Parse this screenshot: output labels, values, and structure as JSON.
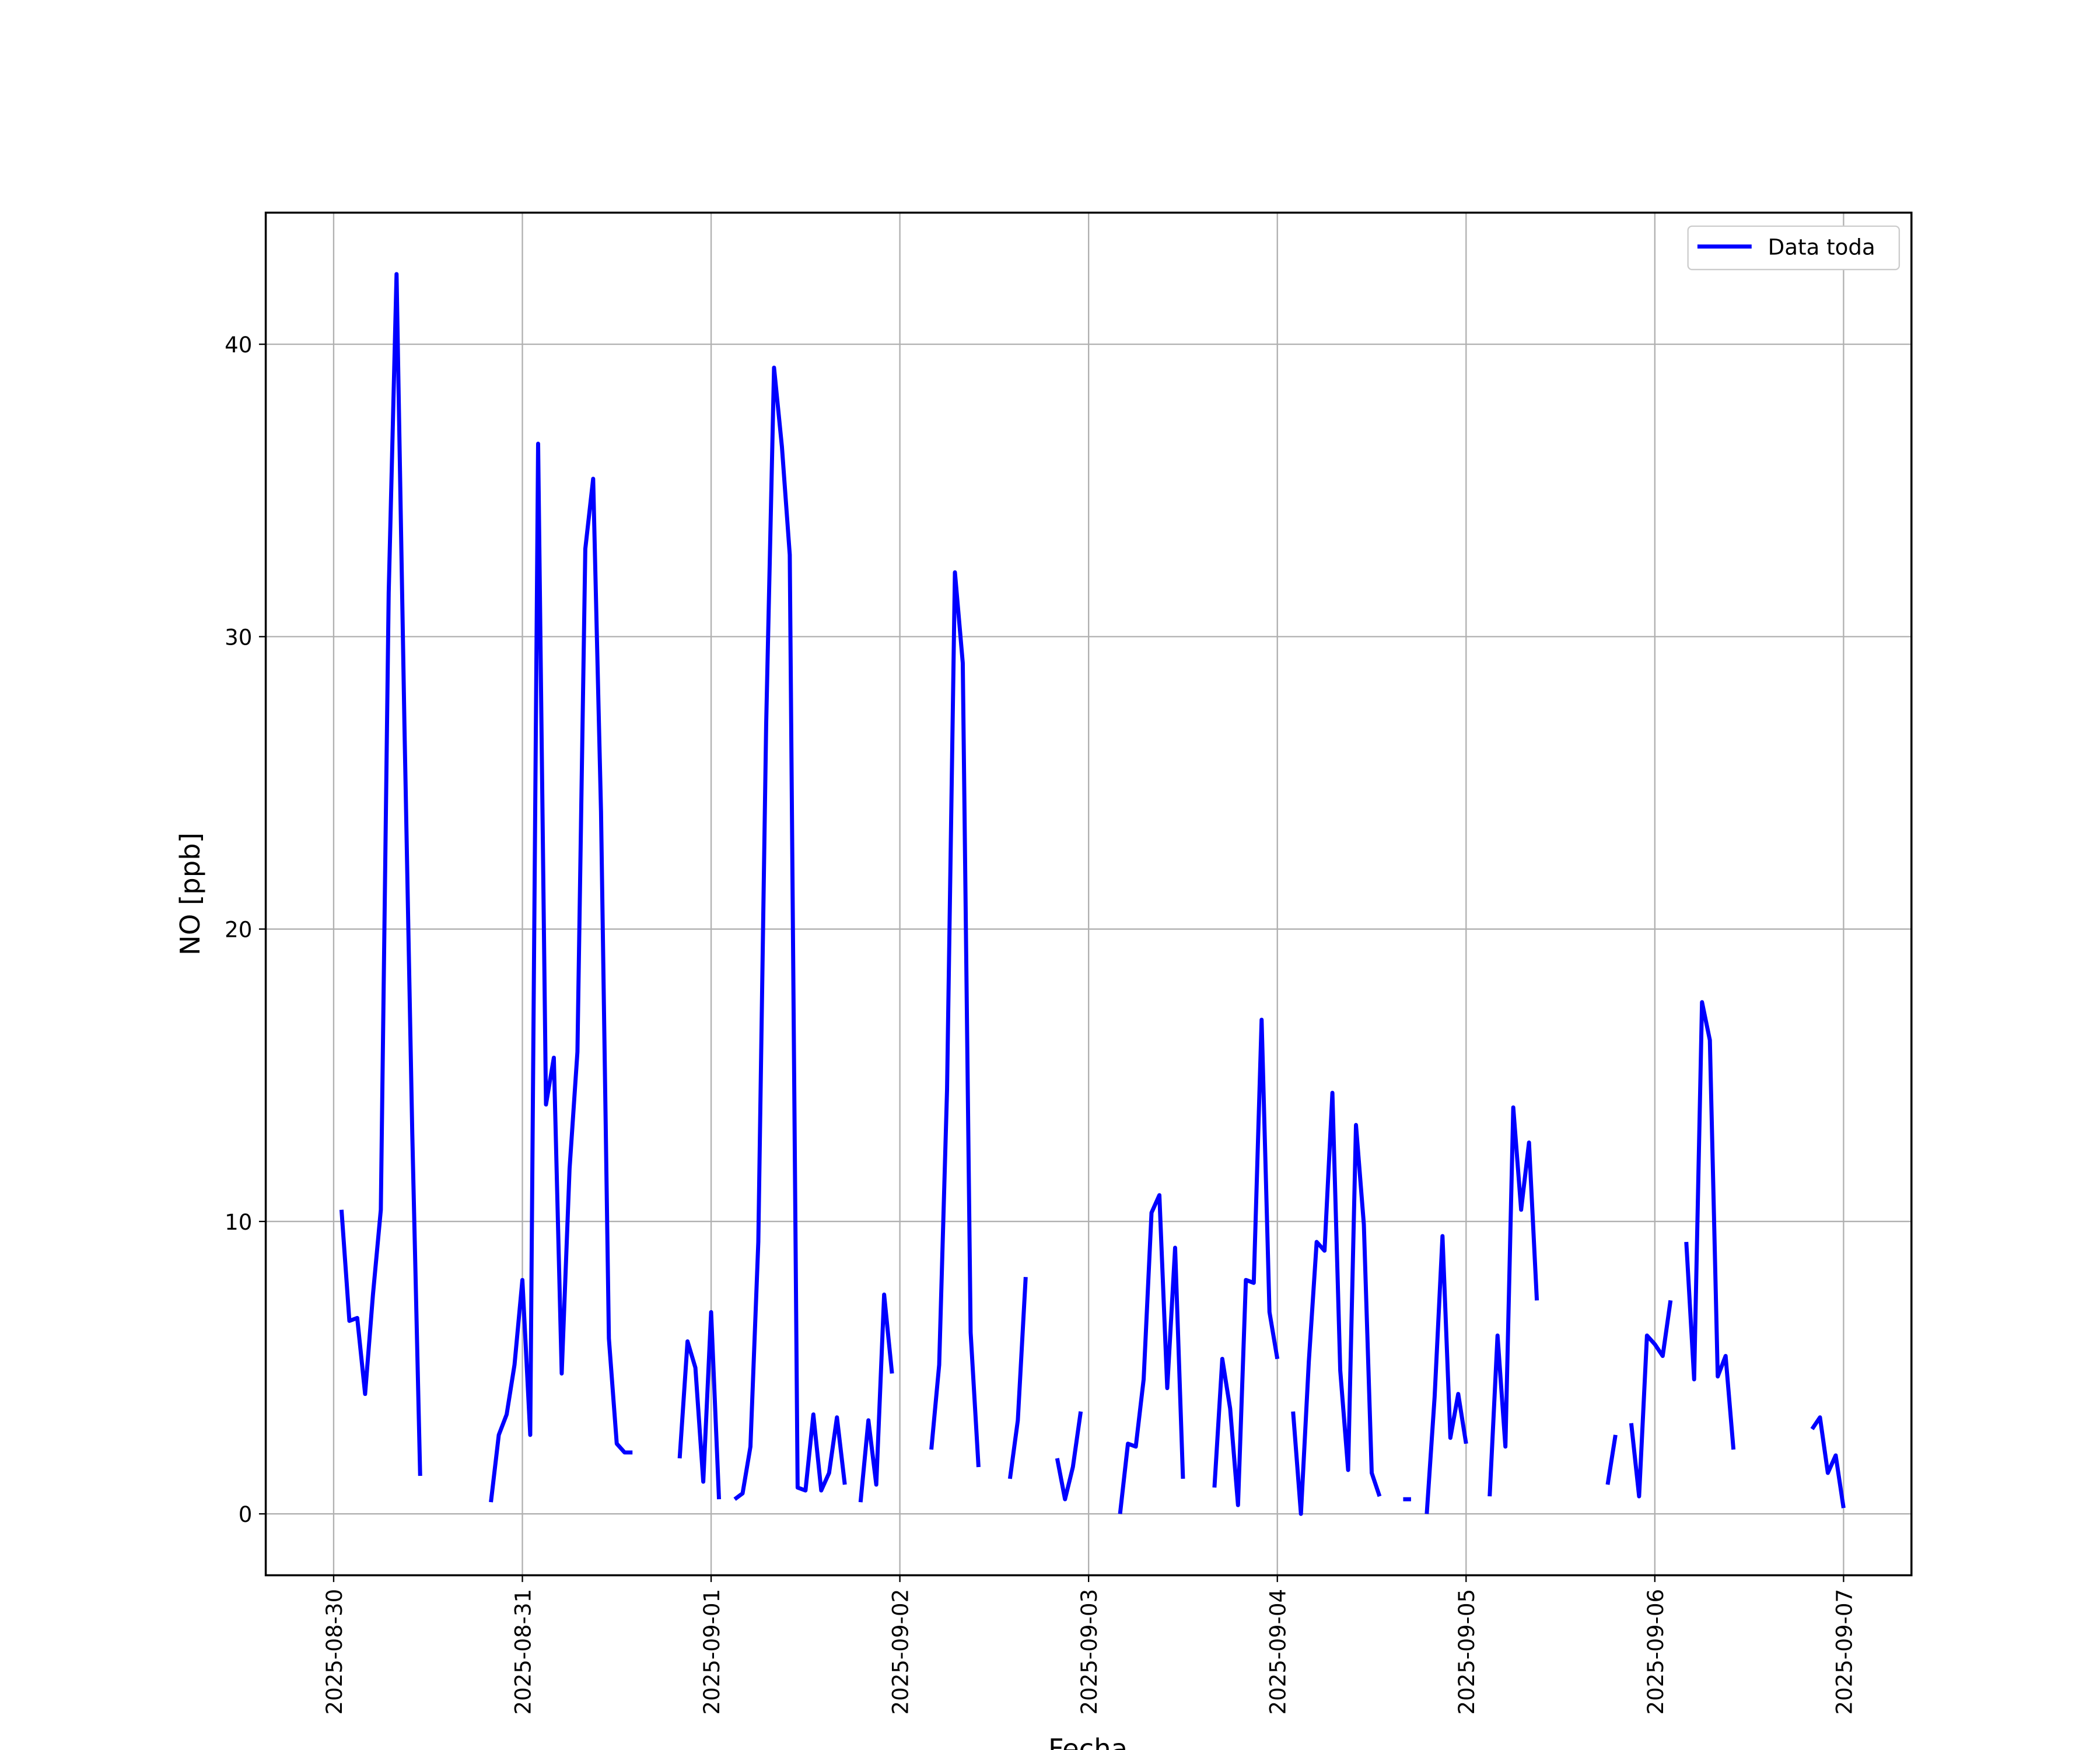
{
  "chart_data": {
    "type": "line",
    "xlabel": "Fecha",
    "ylabel": "NO [ppb]",
    "x": [
      "2025-08-30 01:00",
      "2025-08-30 02:00",
      "2025-08-30 03:00",
      "2025-08-30 04:00",
      "2025-08-30 05:00",
      "2025-08-30 06:00",
      "2025-08-30 07:00",
      "2025-08-30 08:00",
      "2025-08-30 09:00",
      "2025-08-30 10:00",
      "2025-08-30 11:00",
      "2025-08-30 12:00",
      "2025-08-30 20:00",
      "2025-08-30 21:00",
      "2025-08-30 22:00",
      "2025-08-30 23:00",
      "2025-08-31 00:00",
      "2025-08-31 01:00",
      "2025-08-31 02:00",
      "2025-08-31 03:00",
      "2025-08-31 04:00",
      "2025-08-31 05:00",
      "2025-08-31 06:00",
      "2025-08-31 07:00",
      "2025-08-31 08:00",
      "2025-08-31 09:00",
      "2025-08-31 10:00",
      "2025-08-31 11:00",
      "2025-08-31 12:00",
      "2025-08-31 13:00",
      "2025-08-31 14:00",
      "2025-08-31 15:00",
      "2025-08-31 20:00",
      "2025-08-31 21:00",
      "2025-08-31 22:00",
      "2025-08-31 23:00",
      "2025-09-01 00:00",
      "2025-09-01 01:00",
      "2025-09-01 02:00",
      "2025-09-01 03:00",
      "2025-09-01 04:00",
      "2025-09-01 05:00",
      "2025-09-01 06:00",
      "2025-09-01 07:00",
      "2025-09-01 08:00",
      "2025-09-01 09:00",
      "2025-09-01 10:00",
      "2025-09-01 11:00",
      "2025-09-01 12:00",
      "2025-09-01 13:00",
      "2025-09-01 14:00",
      "2025-09-01 15:00",
      "2025-09-01 16:00",
      "2025-09-01 17:00",
      "2025-09-01 18:00",
      "2025-09-01 19:00",
      "2025-09-01 20:00",
      "2025-09-01 21:00",
      "2025-09-01 22:00",
      "2025-09-01 23:00",
      "2025-09-02 00:00",
      "2025-09-02 04:00",
      "2025-09-02 05:00",
      "2025-09-02 06:00",
      "2025-09-02 07:00",
      "2025-09-02 08:00",
      "2025-09-02 09:00",
      "2025-09-02 10:00",
      "2025-09-02 11:00",
      "2025-09-02 14:00",
      "2025-09-02 15:00",
      "2025-09-02 16:00",
      "2025-09-02 17:00",
      "2025-09-02 20:00",
      "2025-09-02 21:00",
      "2025-09-02 22:00",
      "2025-09-02 23:00",
      "2025-09-03 00:00",
      "2025-09-03 04:00",
      "2025-09-03 05:00",
      "2025-09-03 06:00",
      "2025-09-03 07:00",
      "2025-09-03 08:00",
      "2025-09-03 09:00",
      "2025-09-03 10:00",
      "2025-09-03 11:00",
      "2025-09-03 12:00",
      "2025-09-03 13:00",
      "2025-09-03 16:00",
      "2025-09-03 17:00",
      "2025-09-03 18:00",
      "2025-09-03 19:00",
      "2025-09-03 20:00",
      "2025-09-03 21:00",
      "2025-09-03 22:00",
      "2025-09-03 23:00",
      "2025-09-04 00:00",
      "2025-09-04 01:00",
      "2025-09-04 02:00",
      "2025-09-04 03:00",
      "2025-09-04 04:00",
      "2025-09-04 05:00",
      "2025-09-04 06:00",
      "2025-09-04 07:00",
      "2025-09-04 08:00",
      "2025-09-04 09:00",
      "2025-09-04 10:00",
      "2025-09-04 11:00",
      "2025-09-04 12:00",
      "2025-09-04 13:00",
      "2025-09-04 14:00",
      "2025-09-04 16:00",
      "2025-09-04 17:00",
      "2025-09-04 18:00",
      "2025-09-04 19:00",
      "2025-09-04 20:00",
      "2025-09-04 21:00",
      "2025-09-04 22:00",
      "2025-09-04 23:00",
      "2025-09-05 00:00",
      "2025-09-05 01:00",
      "2025-09-05 03:00",
      "2025-09-05 04:00",
      "2025-09-05 05:00",
      "2025-09-05 06:00",
      "2025-09-05 07:00",
      "2025-09-05 08:00",
      "2025-09-05 09:00",
      "2025-09-05 10:00",
      "2025-09-05 18:00",
      "2025-09-05 19:00",
      "2025-09-05 20:00",
      "2025-09-05 21:00",
      "2025-09-05 22:00",
      "2025-09-05 23:00",
      "2025-09-06 00:00",
      "2025-09-06 01:00",
      "2025-09-06 02:00",
      "2025-09-06 03:00",
      "2025-09-06 04:00",
      "2025-09-06 05:00",
      "2025-09-06 06:00",
      "2025-09-06 07:00",
      "2025-09-06 08:00",
      "2025-09-06 09:00",
      "2025-09-06 10:00",
      "2025-09-06 11:00",
      "2025-09-06 20:00",
      "2025-09-06 21:00",
      "2025-09-06 22:00",
      "2025-09-06 23:00",
      "2025-09-07 00:00"
    ],
    "series": [
      {
        "name": "Data toda",
        "color": "#0000ff",
        "values": [
          10.4,
          6.6,
          6.7,
          4.1,
          7.5,
          10.4,
          31.5,
          42.4,
          27,
          13,
          1.3,
          null,
          0.4,
          2.7,
          3.4,
          5.1,
          8.0,
          2.7,
          36.6,
          14,
          15.6,
          4.8,
          11.8,
          15.8,
          33,
          35.4,
          24,
          6,
          2.4,
          2.1,
          2.1,
          null,
          1.9,
          5.9,
          5.0,
          1.1,
          6.9,
          0.5,
          null,
          0.5,
          0.7,
          2.3,
          9.3,
          27,
          39.2,
          36.5,
          32.8,
          0.9,
          0.8,
          3.4,
          0.8,
          1.4,
          3.3,
          1.0,
          null,
          0.4,
          3.2,
          1.0,
          7.5,
          4.8,
          null,
          2.2,
          5.1,
          14.5,
          32.2,
          29.1,
          6.2,
          1.6,
          null,
          1.2,
          3.2,
          8.1,
          null,
          1.9,
          0.5,
          1.6,
          3.5,
          null,
          0.0,
          2.4,
          2.3,
          4.6,
          10.3,
          10.9,
          4.3,
          9.1,
          1.2,
          null,
          0.9,
          5.3,
          3.6,
          0.3,
          8.0,
          7.9,
          16.9,
          6.9,
          5.3,
          null,
          3.5,
          0.0,
          5.2,
          9.3,
          9.0,
          14.4,
          4.9,
          1.5,
          13.3,
          9.9,
          1.4,
          0.6,
          null,
          0.5,
          0.5,
          null,
          0.0,
          4.0,
          9.5,
          2.6,
          4.1,
          2.4,
          null,
          0.6,
          6.1,
          2.3,
          13.9,
          10.4,
          12.7,
          7.3,
          null,
          1.0,
          2.7,
          null,
          3.1,
          0.6,
          6.1,
          5.8,
          5.4,
          7.3,
          null,
          9.3,
          4.6,
          17.5,
          16.2,
          4.7,
          5.4,
          2.2,
          null,
          2.9,
          3.3,
          1.4,
          2.0,
          0.2
        ]
      }
    ],
    "xlim": [
      "2025-08-29 15:22",
      "2025-09-07 08:38"
    ],
    "xticks": [
      "2025-08-30",
      "2025-08-31",
      "2025-09-01",
      "2025-09-02",
      "2025-09-03",
      "2025-09-04",
      "2025-09-05",
      "2025-09-06",
      "2025-09-07"
    ],
    "ylim": [
      -2.1,
      44.5
    ],
    "yticks": [
      0,
      10,
      20,
      30,
      40
    ],
    "grid": true,
    "legend": "upper right"
  }
}
